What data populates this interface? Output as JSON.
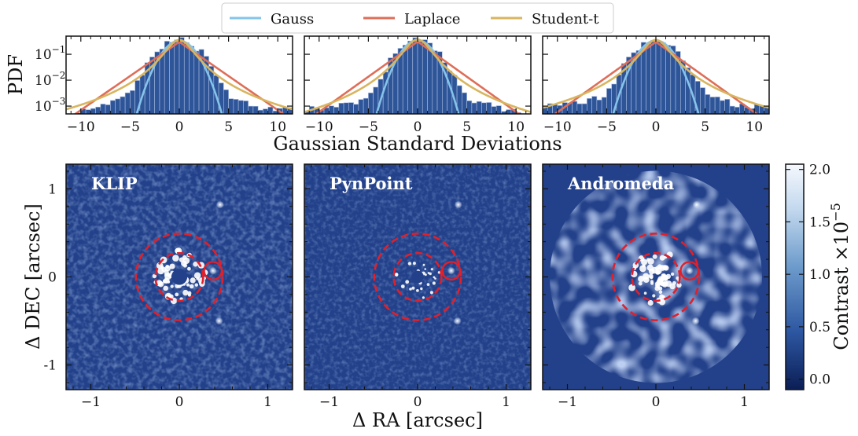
{
  "legend": {
    "entries": [
      {
        "name": "Gauss",
        "color": "#85c4ea"
      },
      {
        "name": "Laplace",
        "color": "#de6e58"
      },
      {
        "name": "Student-t",
        "color": "#d8b55f"
      }
    ]
  },
  "colors": {
    "histogram_bar": "#2f5599",
    "histogram_edge": "#a9bde0",
    "image_background": "#23418a",
    "companion_circle": "#e0202a"
  },
  "colorbar": {
    "label": "Contrast ×10",
    "exponent": "−5",
    "min": -0.1,
    "max": 2.05,
    "ticks": [
      "2.0",
      "1.5",
      "1.0",
      "0.5",
      "0.0"
    ],
    "tick_values": [
      2.0,
      1.5,
      1.0,
      0.5,
      0.0
    ]
  },
  "chart_data": [
    {
      "type": "bar",
      "panel": 1,
      "ylabel": "PDF",
      "xlabel": "Gaussian Standard Deviations",
      "xlim": [
        -11.5,
        11.5
      ],
      "ylim": [
        0.0005,
        0.5
      ],
      "y_scale": "log",
      "xticks": [
        -10,
        -5,
        0,
        5,
        10
      ],
      "xtick_labels": [
        "−10",
        "−5",
        "0",
        "5",
        "10"
      ],
      "yticks": [
        0.1,
        0.01,
        0.001
      ],
      "ytick_labels": [
        "10",
        "10",
        "10"
      ],
      "ytick_exponents": [
        "−1",
        "−2",
        "−3"
      ],
      "histogram": {
        "bin_width": 0.5,
        "peak": 0.35,
        "core_sigma": 1.5,
        "tail_scale": 2.2,
        "floor": 0.0006
      },
      "series": [
        {
          "name": "Gauss",
          "sigma": 1.2,
          "peak": 0.33
        },
        {
          "name": "Laplace",
          "scale": 1.65,
          "peak": 0.3
        },
        {
          "name": "Student-t",
          "peak": 0.36,
          "scale": 1.0,
          "dof": 1.9
        }
      ]
    },
    {
      "type": "bar",
      "panel": 2,
      "xlabel": "Gaussian Standard Deviations",
      "xlim": [
        -11.5,
        11.5
      ],
      "ylim": [
        0.0005,
        0.5
      ],
      "y_scale": "log",
      "xticks": [
        -10,
        -5,
        0,
        5,
        10
      ],
      "xtick_labels": [
        "−10",
        "−5",
        "0",
        "5",
        "10"
      ],
      "histogram": {
        "bin_width": 0.5,
        "peak": 0.37,
        "core_sigma": 1.4,
        "tail_scale": 2.0,
        "floor": 0.0007
      },
      "series": [
        {
          "name": "Gauss",
          "sigma": 1.15,
          "peak": 0.35
        },
        {
          "name": "Laplace",
          "scale": 1.6,
          "peak": 0.31
        },
        {
          "name": "Student-t",
          "peak": 0.37,
          "scale": 1.0,
          "dof": 2.1
        }
      ]
    },
    {
      "type": "bar",
      "panel": 3,
      "xlabel": "Gaussian Standard Deviations",
      "xlim": [
        -11.5,
        11.5
      ],
      "ylim": [
        0.0005,
        0.5
      ],
      "y_scale": "log",
      "xticks": [
        -10,
        -5,
        0,
        5,
        10
      ],
      "xtick_labels": [
        "−10",
        "−5",
        "0",
        "5",
        "10"
      ],
      "histogram": {
        "bin_width": 0.5,
        "peak": 0.36,
        "core_sigma": 1.45,
        "tail_scale": 2.4,
        "floor": 0.0008
      },
      "series": [
        {
          "name": "Gauss",
          "sigma": 1.2,
          "peak": 0.34
        },
        {
          "name": "Laplace",
          "scale": 1.6,
          "peak": 0.3
        },
        {
          "name": "Student-t",
          "peak": 0.36,
          "scale": 1.0,
          "dof": 1.8
        }
      ]
    },
    {
      "type": "heatmap",
      "panel": "KLIP",
      "title": "KLIP",
      "xlabel": "Δ RA [arcsec]",
      "ylabel": "Δ DEC [arcsec]",
      "xlim": [
        -1.28,
        1.28
      ],
      "ylim": [
        -1.28,
        1.28
      ],
      "xticks": [
        -1,
        0,
        1
      ],
      "xtick_labels": [
        "−1",
        "0",
        "1"
      ],
      "yticks": [
        1,
        0,
        -1
      ],
      "ytick_labels": [
        "1",
        "0",
        "-1"
      ],
      "annuli_radii": [
        0.27,
        0.49
      ],
      "companion": {
        "x": 0.38,
        "y": 0.07,
        "radius": 0.1
      },
      "bright_sources": [
        {
          "x": 0.46,
          "y": 0.82
        },
        {
          "x": 0.45,
          "y": -0.5
        }
      ]
    },
    {
      "type": "heatmap",
      "panel": "PynPoint",
      "title": "PynPoint",
      "xlabel": "Δ RA [arcsec]",
      "xlim": [
        -1.28,
        1.28
      ],
      "ylim": [
        -1.28,
        1.28
      ],
      "xticks": [
        -1,
        0,
        1
      ],
      "xtick_labels": [
        "−1",
        "0",
        "1"
      ],
      "annuli_radii": [
        0.27,
        0.49
      ],
      "companion": {
        "x": 0.38,
        "y": 0.07,
        "radius": 0.1
      },
      "bright_sources": [
        {
          "x": 0.46,
          "y": 0.82
        },
        {
          "x": 0.45,
          "y": -0.5
        }
      ]
    },
    {
      "type": "heatmap",
      "panel": "Andromeda",
      "title": "Andromeda",
      "xlabel": "Δ RA [arcsec]",
      "xlim": [
        -1.28,
        1.28
      ],
      "ylim": [
        -1.28,
        1.28
      ],
      "xticks": [
        -1,
        0,
        1
      ],
      "xtick_labels": [
        "−1",
        "0",
        "1"
      ],
      "annuli_radii": [
        0.27,
        0.49
      ],
      "companion": {
        "x": 0.38,
        "y": 0.07,
        "radius": 0.1
      },
      "bright_sources": [
        {
          "x": 0.46,
          "y": 0.82
        },
        {
          "x": 0.45,
          "y": -0.5
        }
      ]
    }
  ]
}
